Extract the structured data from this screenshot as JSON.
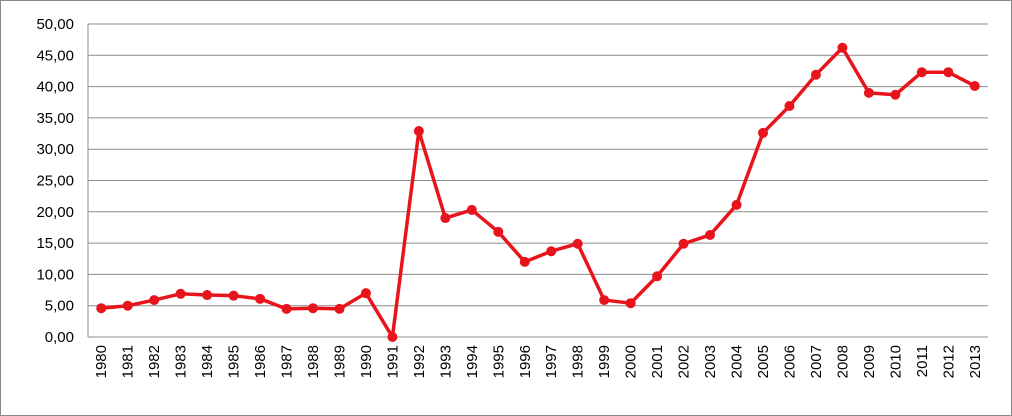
{
  "chart_data": {
    "type": "line",
    "categories": [
      "1980",
      "1981",
      "1982",
      "1983",
      "1984",
      "1985",
      "1986",
      "1987",
      "1988",
      "1989",
      "1990",
      "1991",
      "1992",
      "1993",
      "1994",
      "1995",
      "1996",
      "1997",
      "1998",
      "1999",
      "2000",
      "2001",
      "2002",
      "2003",
      "2004",
      "2005",
      "2006",
      "2007",
      "2008",
      "2009",
      "2010",
      "2011",
      "2012",
      "2013"
    ],
    "series": [
      {
        "color": "#e8141c",
        "values": [
          4.6,
          5.0,
          5.9,
          6.9,
          6.7,
          6.6,
          6.1,
          4.5,
          4.6,
          4.5,
          7.0,
          0,
          32.9,
          19.0,
          20.3,
          16.8,
          12.0,
          13.7,
          14.9,
          5.9,
          5.4,
          9.7,
          14.9,
          16.3,
          21.1,
          32.6,
          36.9,
          41.9,
          46.2,
          39.0,
          38.7,
          42.3,
          42.3,
          40.1
        ]
      }
    ],
    "ylim": [
      0,
      50
    ],
    "yticks": [
      {
        "value": 0,
        "label": "0,00"
      },
      {
        "value": 5,
        "label": "5,00"
      },
      {
        "value": 10,
        "label": "10,00"
      },
      {
        "value": 15,
        "label": "15,00"
      },
      {
        "value": 20,
        "label": "20,00"
      },
      {
        "value": 25,
        "label": "25,00"
      },
      {
        "value": 30,
        "label": "30,00"
      },
      {
        "value": 35,
        "label": "35,00"
      },
      {
        "value": 40,
        "label": "40,00"
      },
      {
        "value": 45,
        "label": "45,00"
      },
      {
        "value": 50,
        "label": "50,00"
      }
    ],
    "grid": true
  }
}
